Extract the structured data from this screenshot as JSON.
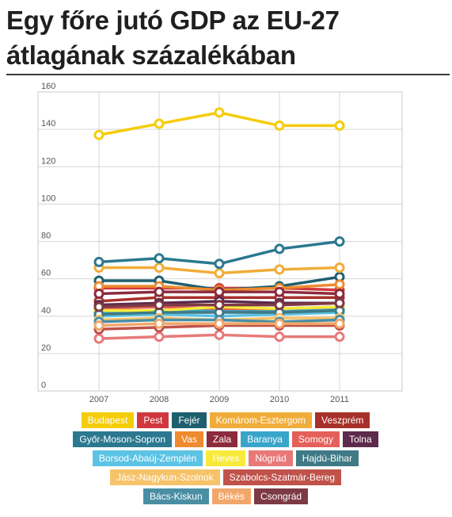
{
  "title_lines": [
    "Egy főre jutó GDP az EU-27",
    "átlagának százalékában"
  ],
  "chart_data": {
    "type": "line",
    "x": [
      "2007",
      "2008",
      "2009",
      "2010",
      "2011"
    ],
    "ylim": [
      0,
      160
    ],
    "yticks": [
      0,
      20,
      40,
      60,
      80,
      100,
      120,
      140,
      160
    ],
    "grid": true,
    "legend_position": "bottom",
    "series": [
      {
        "name": "Budapest",
        "color": "#f5cc0a",
        "values": [
          137,
          143,
          149,
          142,
          142
        ]
      },
      {
        "name": "Pest",
        "color": "#d0383e",
        "values": [
          55,
          55,
          55,
          55,
          54
        ]
      },
      {
        "name": "Fejér",
        "color": "#1e5f6e",
        "values": [
          59,
          59,
          54,
          56,
          61
        ]
      },
      {
        "name": "Komárom-Esztergom",
        "color": "#f0ad3a",
        "values": [
          66,
          66,
          63,
          65,
          66
        ]
      },
      {
        "name": "Veszprém",
        "color": "#a8302a",
        "values": [
          48,
          50,
          50,
          50,
          50
        ]
      },
      {
        "name": "Győr-Moson-Sopron",
        "color": "#2b7890",
        "values": [
          69,
          71,
          68,
          76,
          80
        ]
      },
      {
        "name": "Vas",
        "color": "#ef8a2e",
        "values": [
          56,
          56,
          54,
          55,
          57
        ]
      },
      {
        "name": "Zala",
        "color": "#8b2b3c",
        "values": [
          52,
          53,
          53,
          53,
          52
        ]
      },
      {
        "name": "Baranya",
        "color": "#38a5c9",
        "values": [
          42,
          43,
          43,
          43,
          44
        ]
      },
      {
        "name": "Somogy",
        "color": "#e4605a",
        "values": [
          44,
          45,
          44,
          44,
          45
        ]
      },
      {
        "name": "Tolna",
        "color": "#5c2a4a",
        "values": [
          46,
          47,
          48,
          47,
          47
        ]
      },
      {
        "name": "Borsod-Abaúj-Zemplén",
        "color": "#5cc3e4",
        "values": [
          40,
          41,
          40,
          41,
          42
        ]
      },
      {
        "name": "Heves",
        "color": "#f7ea3a",
        "values": [
          43,
          43,
          45,
          44,
          45
        ]
      },
      {
        "name": "Nógrád",
        "color": "#e77a78",
        "values": [
          28,
          29,
          30,
          29,
          29
        ]
      },
      {
        "name": "Hajdú-Bihar",
        "color": "#3f7a86",
        "values": [
          41,
          42,
          42,
          42,
          43
        ]
      },
      {
        "name": "Jász-Nagykun-Szolnok",
        "color": "#f6c36a",
        "values": [
          38,
          39,
          38,
          39,
          39
        ]
      },
      {
        "name": "Szabolcs-Szatmár-Bereg",
        "color": "#c0524a",
        "values": [
          33,
          34,
          35,
          35,
          35
        ]
      },
      {
        "name": "Bács-Kiskun",
        "color": "#4a8ea4",
        "values": [
          37,
          38,
          38,
          37,
          38
        ]
      },
      {
        "name": "Békés",
        "color": "#f2a76a",
        "values": [
          35,
          36,
          36,
          36,
          36
        ]
      },
      {
        "name": "Csongrád",
        "color": "#7d3a44",
        "values": [
          45,
          46,
          46,
          46,
          47
        ]
      }
    ]
  },
  "legend_rows": [
    [
      "Budapest",
      "Pest",
      "Fejér",
      "Komárom-Esztergom",
      "Veszprém"
    ],
    [
      "Győr-Moson-Sopron",
      "Vas",
      "Zala",
      "Baranya",
      "Somogy",
      "Tolna"
    ],
    [
      "Borsod-Abaúj-Zemplén",
      "Heves",
      "Nógrád",
      "Hajdú-Bihar"
    ],
    [
      "Jász-Nagykun-Szolnok",
      "Szabolcs-Szatmár-Bereg"
    ],
    [
      "Bács-Kiskun",
      "Békés",
      "Csongrád"
    ]
  ]
}
